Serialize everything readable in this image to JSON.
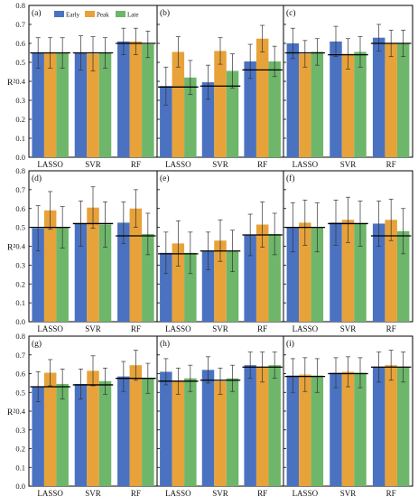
{
  "colors": {
    "early": "#4a72c0",
    "peak": "#e8a23a",
    "late": "#6db66a",
    "axis": "#000000",
    "errorbar": "#333333",
    "hline": "#000000"
  },
  "ylabel": "R²",
  "legend": {
    "placement": "top of panel (a)",
    "entries": [
      "Early",
      "Peak",
      "Late"
    ]
  },
  "y_ticks": [
    "0.0",
    "0.1",
    "0.2",
    "0.3",
    "0.4",
    "0.5",
    "0.6",
    "0.7",
    "0.8"
  ],
  "chart_data": [
    {
      "label": "(a)",
      "type": "bar",
      "categories": [
        "LASSO",
        "SVR",
        "RF"
      ],
      "ylim": [
        0,
        0.8
      ],
      "series": [
        {
          "name": "Early",
          "values": [
            0.55,
            0.55,
            0.61
          ],
          "err": [
            0.08,
            0.09,
            0.07
          ]
        },
        {
          "name": "Peak",
          "values": [
            0.55,
            0.545,
            0.61
          ],
          "err": [
            0.08,
            0.09,
            0.07
          ]
        },
        {
          "name": "Late",
          "values": [
            0.55,
            0.55,
            0.595
          ],
          "err": [
            0.08,
            0.08,
            0.07
          ]
        }
      ],
      "hline": [
        0.55,
        0.55,
        0.6
      ]
    },
    {
      "label": "(b)",
      "type": "bar",
      "categories": [
        "LASSO",
        "SVR",
        "RF"
      ],
      "ylim": [
        0,
        0.8
      ],
      "series": [
        {
          "name": "Early",
          "values": [
            0.375,
            0.395,
            0.505
          ],
          "err": [
            0.1,
            0.09,
            0.09
          ]
        },
        {
          "name": "Peak",
          "values": [
            0.555,
            0.56,
            0.625
          ],
          "err": [
            0.08,
            0.07,
            0.07
          ]
        },
        {
          "name": "Late",
          "values": [
            0.42,
            0.455,
            0.505
          ],
          "err": [
            0.09,
            0.09,
            0.08
          ]
        }
      ],
      "hline": [
        0.37,
        0.375,
        0.46
      ]
    },
    {
      "label": "(c)",
      "type": "bar",
      "categories": [
        "LASSO",
        "SVR",
        "RF"
      ],
      "ylim": [
        0,
        0.8
      ],
      "series": [
        {
          "name": "Early",
          "values": [
            0.6,
            0.61,
            0.63
          ],
          "err": [
            0.08,
            0.08,
            0.07
          ]
        },
        {
          "name": "Peak",
          "values": [
            0.545,
            0.545,
            0.6
          ],
          "err": [
            0.07,
            0.08,
            0.07
          ]
        },
        {
          "name": "Late",
          "values": [
            0.555,
            0.555,
            0.6
          ],
          "err": [
            0.07,
            0.08,
            0.07
          ]
        }
      ],
      "hline": [
        0.55,
        0.54,
        0.6
      ]
    },
    {
      "label": "(d)",
      "type": "bar",
      "categories": [
        "LASSO",
        "SVR",
        "RF"
      ],
      "ylim": [
        0,
        0.8
      ],
      "series": [
        {
          "name": "Early",
          "values": [
            0.495,
            0.52,
            0.525
          ],
          "err": [
            0.12,
            0.12,
            0.11
          ]
        },
        {
          "name": "Peak",
          "values": [
            0.59,
            0.605,
            0.6
          ],
          "err": [
            0.1,
            0.11,
            0.1
          ]
        },
        {
          "name": "Late",
          "values": [
            0.5,
            0.515,
            0.465
          ],
          "err": [
            0.11,
            0.12,
            0.11
          ]
        }
      ],
      "hline": [
        0.5,
        0.52,
        0.455
      ]
    },
    {
      "label": "(e)",
      "type": "bar",
      "categories": [
        "LASSO",
        "SVR",
        "RF"
      ],
      "ylim": [
        0,
        0.8
      ],
      "series": [
        {
          "name": "Early",
          "values": [
            0.365,
            0.375,
            0.46
          ],
          "err": [
            0.11,
            0.1,
            0.11
          ]
        },
        {
          "name": "Peak",
          "values": [
            0.415,
            0.43,
            0.515
          ],
          "err": [
            0.12,
            0.11,
            0.12
          ]
        },
        {
          "name": "Late",
          "values": [
            0.365,
            0.375,
            0.465
          ],
          "err": [
            0.11,
            0.11,
            0.11
          ]
        }
      ],
      "hline": [
        0.36,
        0.375,
        0.46
      ]
    },
    {
      "label": "(f)",
      "type": "bar",
      "categories": [
        "LASSO",
        "SVR",
        "RF"
      ],
      "ylim": [
        0,
        0.8
      ],
      "series": [
        {
          "name": "Early",
          "values": [
            0.5,
            0.525,
            0.52
          ],
          "err": [
            0.13,
            0.12,
            0.12
          ]
        },
        {
          "name": "Peak",
          "values": [
            0.525,
            0.54,
            0.54
          ],
          "err": [
            0.12,
            0.12,
            0.11
          ]
        },
        {
          "name": "Late",
          "values": [
            0.5,
            0.52,
            0.48
          ],
          "err": [
            0.13,
            0.12,
            0.12
          ]
        }
      ],
      "hline": [
        0.5,
        0.52,
        0.455
      ]
    },
    {
      "label": "(g)",
      "type": "bar",
      "categories": [
        "LASSO",
        "SVR",
        "RF"
      ],
      "ylim": [
        0,
        0.8
      ],
      "series": [
        {
          "name": "Early",
          "values": [
            0.53,
            0.545,
            0.585
          ],
          "err": [
            0.08,
            0.08,
            0.08
          ]
        },
        {
          "name": "Peak",
          "values": [
            0.605,
            0.615,
            0.645
          ],
          "err": [
            0.07,
            0.08,
            0.08
          ]
        },
        {
          "name": "Late",
          "values": [
            0.545,
            0.56,
            0.575
          ],
          "err": [
            0.08,
            0.07,
            0.08
          ]
        }
      ],
      "hline": [
        0.53,
        0.54,
        0.575
      ]
    },
    {
      "label": "(h)",
      "type": "bar",
      "categories": [
        "LASSO",
        "SVR",
        "RF"
      ],
      "ylim": [
        0,
        0.8
      ],
      "series": [
        {
          "name": "Early",
          "values": [
            0.61,
            0.62,
            0.645
          ],
          "err": [
            0.07,
            0.07,
            0.07
          ]
        },
        {
          "name": "Peak",
          "values": [
            0.56,
            0.56,
            0.635
          ],
          "err": [
            0.07,
            0.07,
            0.08
          ]
        },
        {
          "name": "Late",
          "values": [
            0.575,
            0.575,
            0.645
          ],
          "err": [
            0.07,
            0.07,
            0.07
          ]
        }
      ],
      "hline": [
        0.56,
        0.565,
        0.635
      ]
    },
    {
      "label": "(i)",
      "type": "bar",
      "categories": [
        "LASSO",
        "SVR",
        "RF"
      ],
      "ylim": [
        0,
        0.8
      ],
      "series": [
        {
          "name": "Early",
          "values": [
            0.59,
            0.605,
            0.635
          ],
          "err": [
            0.09,
            0.08,
            0.08
          ]
        },
        {
          "name": "Peak",
          "values": [
            0.595,
            0.61,
            0.645
          ],
          "err": [
            0.09,
            0.08,
            0.08
          ]
        },
        {
          "name": "Late",
          "values": [
            0.59,
            0.605,
            0.635
          ],
          "err": [
            0.09,
            0.08,
            0.08
          ]
        }
      ],
      "hline": [
        0.585,
        0.6,
        0.635
      ]
    }
  ]
}
